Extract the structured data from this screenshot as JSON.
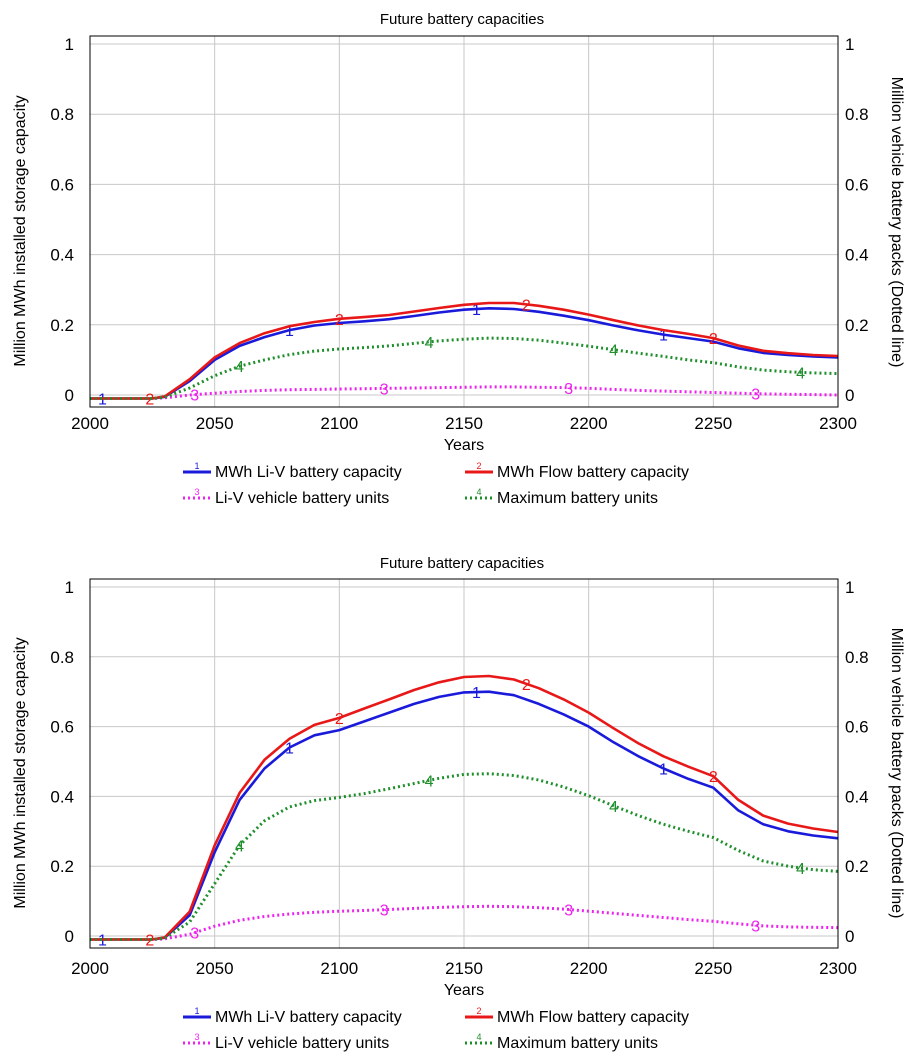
{
  "colors": {
    "li_v": "#1a1adb",
    "flow": "#e81818",
    "vehicle": "#ee22ee",
    "maxunits": "#1f8f2c"
  },
  "charts": [
    {
      "title": "Future battery capacities",
      "xlabel": "Years",
      "ylabel_left": "Million MWh installed storage capacity",
      "ylabel_right": "Million vehicle battery packs (Dotted line)",
      "x_ticks": [
        "2000",
        "2050",
        "2100",
        "2150",
        "2200",
        "2250",
        "2300"
      ],
      "y_ticks_left": [
        "0",
        "0.2",
        "0.4",
        "0.6",
        "0.8",
        "1"
      ],
      "y_ticks_right": [
        "0",
        "0.2",
        "0.4",
        "0.6",
        "0.8",
        "1"
      ],
      "legend": [
        {
          "marker": "1",
          "label": "MWh Li-V battery capacity"
        },
        {
          "marker": "2",
          "label": "MWh Flow battery capacity"
        },
        {
          "marker": "3",
          "label": "Li-V vehicle battery units"
        },
        {
          "marker": "4",
          "label": "Maximum battery units"
        }
      ]
    },
    {
      "title": "Future battery capacities",
      "xlabel": "Years",
      "ylabel_left": "Million MWh installed storage capacity",
      "ylabel_right": "Million vehicle battery packs (Dotted line)",
      "x_ticks": [
        "2000",
        "2050",
        "2100",
        "2150",
        "2200",
        "2250",
        "2300"
      ],
      "y_ticks_left": [
        "0",
        "0.2",
        "0.4",
        "0.6",
        "0.8",
        "1"
      ],
      "y_ticks_right": [
        "0",
        "0.2",
        "0.4",
        "0.6",
        "0.8",
        "1"
      ],
      "legend": [
        {
          "marker": "1",
          "label": "MWh Li-V battery capacity"
        },
        {
          "marker": "2",
          "label": "MWh Flow battery capacity"
        },
        {
          "marker": "3",
          "label": "Li-V vehicle battery units"
        },
        {
          "marker": "4",
          "label": "Maximum battery units"
        }
      ]
    }
  ],
  "chart_data": [
    {
      "type": "line",
      "title": "Future battery capacities",
      "xlabel": "Years",
      "ylabel": "Million MWh installed storage capacity",
      "ylabel_right": "Million vehicle battery packs (Dotted line)",
      "xlim": [
        2000,
        2300
      ],
      "ylim": [
        -0.01,
        1
      ],
      "grid": true,
      "legend_position": "bottom",
      "x": [
        2000,
        2025,
        2030,
        2040,
        2050,
        2060,
        2070,
        2080,
        2090,
        2100,
        2110,
        2120,
        2130,
        2140,
        2150,
        2160,
        2170,
        2180,
        2190,
        2200,
        2210,
        2220,
        2230,
        2240,
        2250,
        2260,
        2270,
        2280,
        2290,
        2300
      ],
      "series": [
        {
          "name": "MWh Li-V battery capacity",
          "marker": "1",
          "axis": "left",
          "style": "solid",
          "values": [
            -0.01,
            -0.01,
            -0.005,
            0.04,
            0.1,
            0.14,
            0.165,
            0.185,
            0.198,
            0.205,
            0.21,
            0.216,
            0.225,
            0.235,
            0.243,
            0.247,
            0.245,
            0.237,
            0.226,
            0.213,
            0.198,
            0.184,
            0.172,
            0.162,
            0.152,
            0.133,
            0.12,
            0.114,
            0.11,
            0.107
          ]
        },
        {
          "name": "MWh Flow battery capacity",
          "marker": "2",
          "axis": "left",
          "style": "solid",
          "values": [
            -0.01,
            -0.01,
            -0.004,
            0.045,
            0.107,
            0.148,
            0.176,
            0.196,
            0.208,
            0.217,
            0.222,
            0.228,
            0.238,
            0.248,
            0.257,
            0.262,
            0.262,
            0.254,
            0.243,
            0.229,
            0.213,
            0.198,
            0.185,
            0.174,
            0.162,
            0.141,
            0.126,
            0.119,
            0.114,
            0.111
          ]
        },
        {
          "name": "Li-V vehicle battery units",
          "marker": "3",
          "axis": "right",
          "style": "dotted",
          "values": [
            -0.01,
            -0.01,
            -0.008,
            0.0,
            0.005,
            0.01,
            0.013,
            0.015,
            0.016,
            0.017,
            0.018,
            0.019,
            0.02,
            0.021,
            0.022,
            0.023,
            0.023,
            0.022,
            0.021,
            0.019,
            0.016,
            0.013,
            0.011,
            0.009,
            0.007,
            0.005,
            0.003,
            0.002,
            0.001,
            0.0
          ]
        },
        {
          "name": "Maximum battery units",
          "marker": "4",
          "axis": "right",
          "style": "dotted",
          "values": [
            -0.01,
            -0.01,
            -0.006,
            0.02,
            0.055,
            0.082,
            0.1,
            0.115,
            0.125,
            0.131,
            0.135,
            0.14,
            0.147,
            0.154,
            0.159,
            0.162,
            0.161,
            0.156,
            0.148,
            0.139,
            0.129,
            0.119,
            0.11,
            0.1,
            0.092,
            0.08,
            0.071,
            0.066,
            0.063,
            0.061
          ]
        }
      ]
    },
    {
      "type": "line",
      "title": "Future battery capacities",
      "xlabel": "Years",
      "ylabel": "Million MWh installed storage capacity",
      "ylabel_right": "Million vehicle battery packs (Dotted line)",
      "xlim": [
        2000,
        2300
      ],
      "ylim": [
        -0.01,
        1
      ],
      "grid": true,
      "legend_position": "bottom",
      "x": [
        2000,
        2025,
        2030,
        2040,
        2050,
        2060,
        2070,
        2080,
        2090,
        2100,
        2110,
        2120,
        2130,
        2140,
        2150,
        2160,
        2170,
        2180,
        2190,
        2200,
        2210,
        2220,
        2230,
        2240,
        2250,
        2260,
        2270,
        2280,
        2290,
        2300
      ],
      "series": [
        {
          "name": "MWh Li-V battery capacity",
          "marker": "1",
          "axis": "left",
          "style": "solid",
          "values": [
            -0.01,
            -0.01,
            -0.005,
            0.06,
            0.24,
            0.39,
            0.48,
            0.54,
            0.575,
            0.59,
            0.615,
            0.64,
            0.665,
            0.685,
            0.698,
            0.7,
            0.69,
            0.665,
            0.635,
            0.6,
            0.555,
            0.515,
            0.48,
            0.45,
            0.425,
            0.36,
            0.32,
            0.3,
            0.288,
            0.28
          ]
        },
        {
          "name": "MWh Flow battery capacity",
          "marker": "2",
          "axis": "left",
          "style": "solid",
          "values": [
            -0.01,
            -0.01,
            -0.004,
            0.07,
            0.26,
            0.41,
            0.505,
            0.565,
            0.605,
            0.625,
            0.652,
            0.678,
            0.705,
            0.727,
            0.742,
            0.745,
            0.735,
            0.71,
            0.678,
            0.64,
            0.595,
            0.552,
            0.515,
            0.485,
            0.458,
            0.39,
            0.345,
            0.322,
            0.308,
            0.298
          ]
        },
        {
          "name": "Li-V vehicle battery units",
          "marker": "3",
          "axis": "right",
          "style": "dotted",
          "values": [
            -0.01,
            -0.01,
            -0.008,
            0.005,
            0.028,
            0.045,
            0.056,
            0.063,
            0.068,
            0.071,
            0.073,
            0.076,
            0.079,
            0.082,
            0.084,
            0.085,
            0.084,
            0.081,
            0.077,
            0.071,
            0.065,
            0.059,
            0.053,
            0.047,
            0.042,
            0.035,
            0.029,
            0.026,
            0.025,
            0.024
          ]
        },
        {
          "name": "Maximum battery units",
          "marker": "4",
          "axis": "right",
          "style": "dotted",
          "values": [
            -0.01,
            -0.01,
            -0.006,
            0.04,
            0.15,
            0.26,
            0.33,
            0.37,
            0.388,
            0.397,
            0.408,
            0.422,
            0.437,
            0.452,
            0.463,
            0.465,
            0.46,
            0.447,
            0.427,
            0.402,
            0.373,
            0.345,
            0.32,
            0.3,
            0.282,
            0.245,
            0.215,
            0.2,
            0.19,
            0.185
          ]
        }
      ]
    }
  ]
}
